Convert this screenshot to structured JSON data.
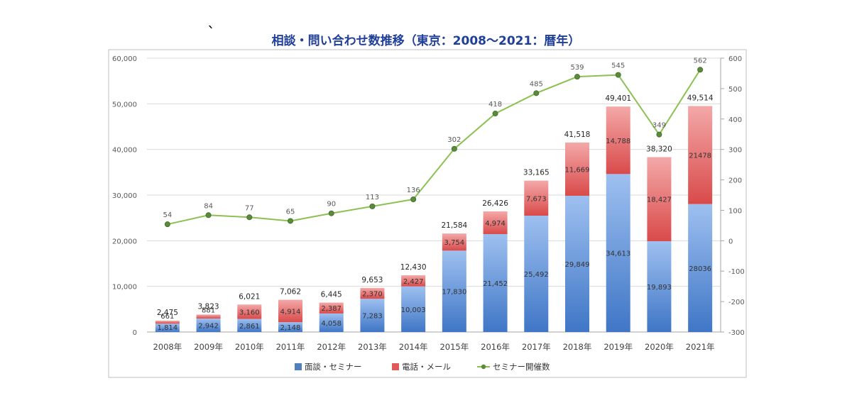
{
  "chart_data": {
    "type": "bar",
    "title": "相談・問い合わせ数推移（東京：2008〜2021：暦年）",
    "categories": [
      "2008年",
      "2009年",
      "2010年",
      "2011年",
      "2012年",
      "2013年",
      "2014年",
      "2015年",
      "2016年",
      "2017年",
      "2018年",
      "2019年",
      "2020年",
      "2021年"
    ],
    "series": [
      {
        "name": "面談・セミナー",
        "type": "bar",
        "color": "#4f81bd",
        "values": [
          1814,
          2942,
          2861,
          2148,
          4058,
          7283,
          10003,
          17830,
          21452,
          25492,
          29849,
          34613,
          19893,
          28036
        ],
        "labels": [
          "1,814",
          "2,942",
          "2,861",
          "2,148",
          "4,058",
          "7,283",
          "10,003",
          "17,830",
          "21,452",
          "25,492",
          "29,849",
          "34,613",
          "19,893",
          "28036"
        ]
      },
      {
        "name": "電話・メール",
        "type": "bar",
        "color": "#e05a5a",
        "values": [
          661,
          881,
          3160,
          4914,
          2387,
          2370,
          2427,
          3754,
          4974,
          7673,
          11669,
          14788,
          18427,
          21478
        ],
        "labels": [
          "661",
          "881",
          "3,160",
          "4,914",
          "2,387",
          "2,370",
          "2,427",
          "3,754",
          "4,974",
          "7,673",
          "11,669",
          "14,788",
          "18,427",
          "21478"
        ]
      },
      {
        "name": "セミナー開催数",
        "type": "line",
        "axis": "right",
        "color": "#8cc152",
        "values": [
          54,
          84,
          77,
          65,
          90,
          113,
          136,
          302,
          418,
          485,
          539,
          545,
          349,
          562
        ],
        "labels": [
          "54",
          "84",
          "77",
          "65",
          "90",
          "113",
          "136",
          "302",
          "418",
          "485",
          "539",
          "545",
          "349",
          "562"
        ]
      }
    ],
    "totals": [
      "2,475",
      "3,823",
      "6,021",
      "7,062",
      "6,445",
      "9,653",
      "12,430",
      "21,584",
      "26,426",
      "33,165",
      "41,518",
      "49,401",
      "38,320",
      "49,514"
    ],
    "left_axis": {
      "ylim": [
        0,
        60000
      ],
      "ticks": [
        0,
        10000,
        20000,
        30000,
        40000,
        50000,
        60000
      ],
      "tick_labels": [
        "0",
        "10,000",
        "20,000",
        "30,000",
        "40,000",
        "50,000",
        "60,000"
      ]
    },
    "right_axis": {
      "ylim": [
        -300,
        600
      ],
      "ticks": [
        -300,
        -200,
        -100,
        0,
        100,
        200,
        300,
        400,
        500,
        600
      ],
      "tick_labels": [
        "-300",
        "-200",
        "-100",
        "0",
        "100",
        "200",
        "300",
        "400",
        "500",
        "600"
      ]
    },
    "grid": true,
    "legend_position": "bottom"
  }
}
